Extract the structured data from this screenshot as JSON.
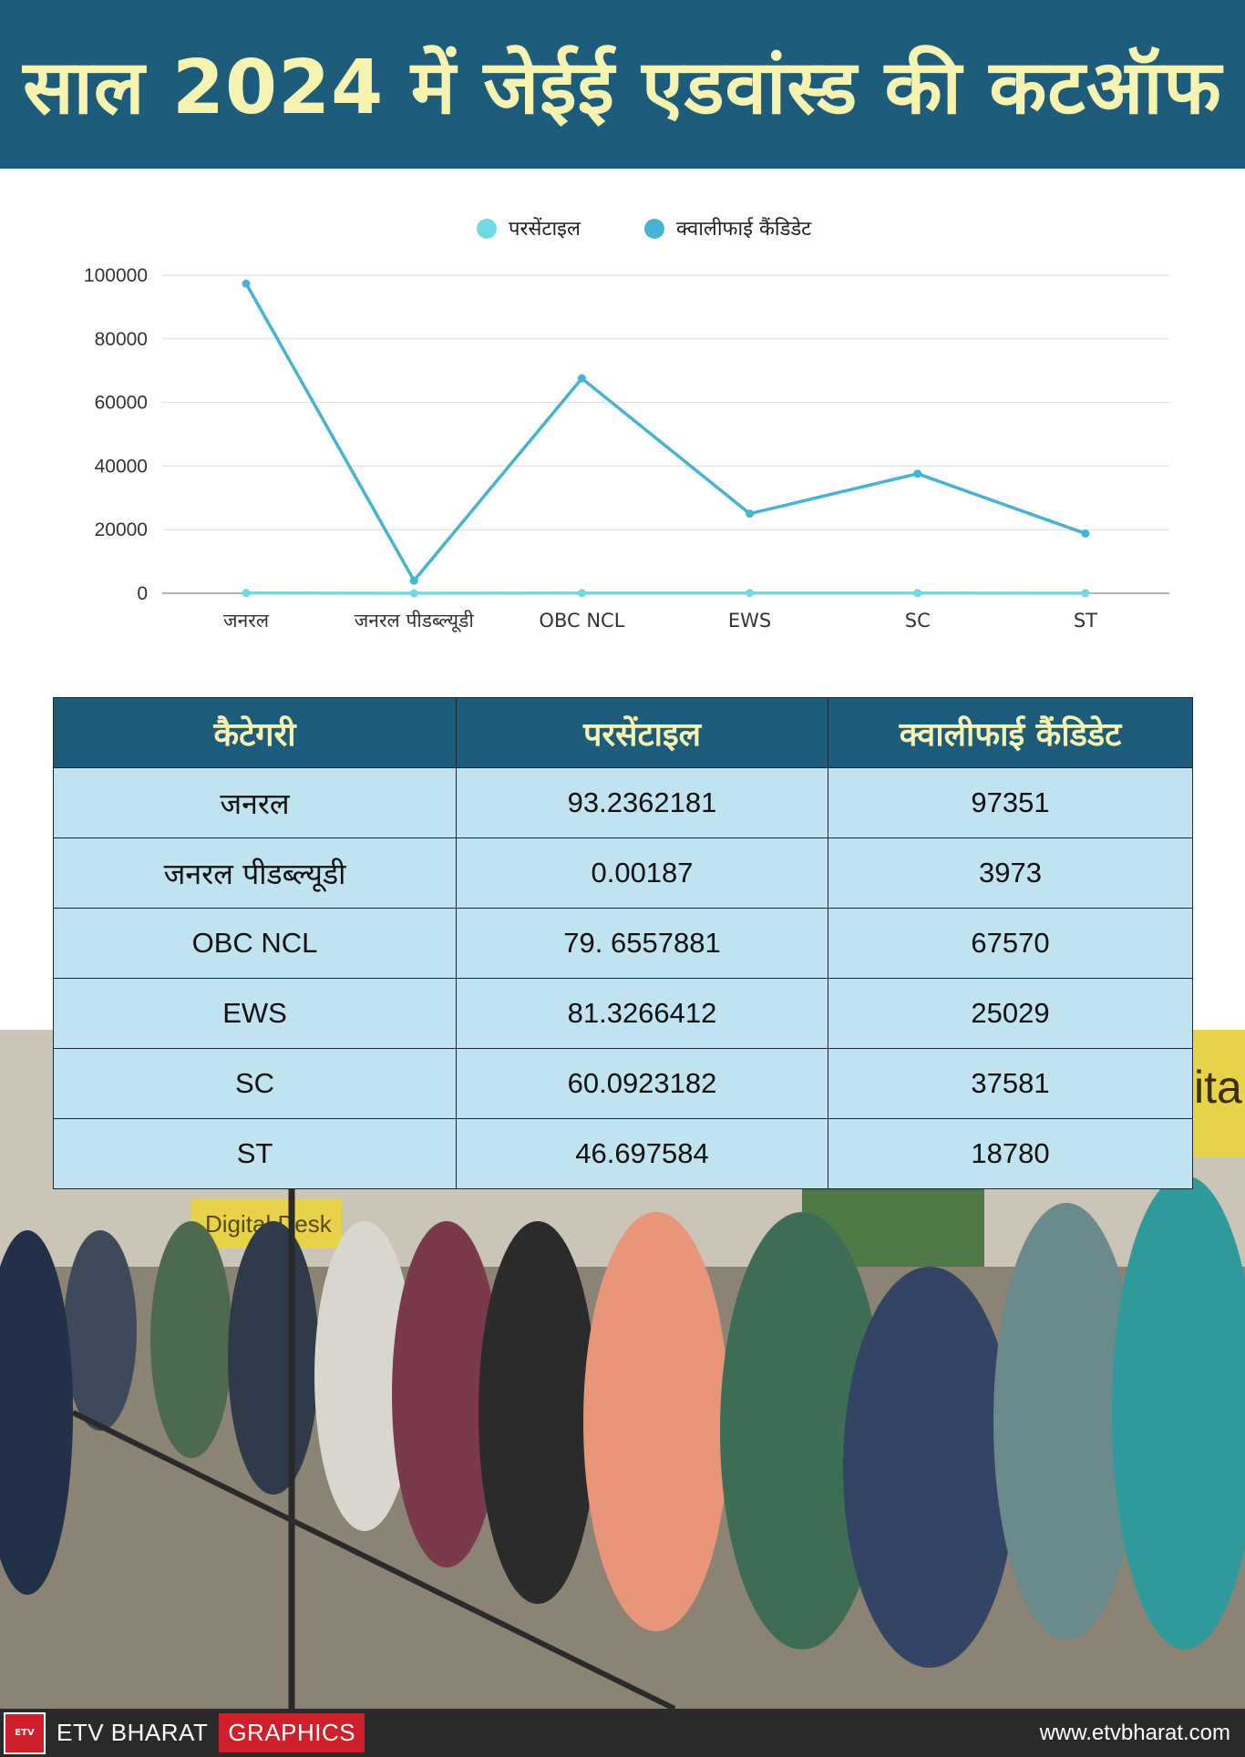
{
  "header": {
    "title": "साल 2024 में जेईई एडवांस्ड की कटऑफ"
  },
  "chart_data": {
    "type": "line",
    "legend_position": "top-center",
    "grid": true,
    "ylim": [
      0,
      100000
    ],
    "yticks": [
      "0",
      "20000",
      "40000",
      "60000",
      "80000",
      "100000"
    ],
    "ytick_values": [
      0,
      20000,
      40000,
      60000,
      80000,
      100000
    ],
    "categories": [
      "जनरल",
      "जनरल पीडब्ल्यूडी",
      "OBC NCL",
      "EWS",
      "SC",
      "ST"
    ],
    "series": [
      {
        "name": "परसेंटाइल",
        "color": "#6fd9e6",
        "values": [
          93.2362181,
          0.00187,
          79.6557881,
          81.3266412,
          60.0923182,
          46.697584
        ]
      },
      {
        "name": "क्वालीफाई कैंडिडेट",
        "color": "#47b3d2",
        "values": [
          97351,
          3973,
          67570,
          25029,
          37581,
          18780
        ]
      }
    ]
  },
  "table": {
    "headers": [
      "कैटेगरी",
      "परसेंटाइल",
      "क्वालीफाई कैंडिडेट"
    ],
    "rows": [
      [
        "जनरल",
        "93.2362181",
        "97351"
      ],
      [
        "जनरल पीडब्ल्यूडी",
        "0.00187",
        "3973"
      ],
      [
        "OBC NCL",
        "79. 6557881",
        "67570"
      ],
      [
        "EWS",
        "81.3266412",
        "25029"
      ],
      [
        "SC",
        "60.0923182",
        "37581"
      ],
      [
        "ST",
        "46.697584",
        "18780"
      ]
    ]
  },
  "photo": {
    "sign_text": "Digital Desk",
    "right_sign_text": "ita"
  },
  "footer": {
    "logo_text": "ETV",
    "brand": "ETV BHARAT",
    "graphics_label": "GRAPHICS",
    "url": "www.etvbharat.com"
  },
  "colors": {
    "header_bg": "#1d5c7a",
    "header_text": "#f6f3b0",
    "table_body": "#bfe3f0",
    "footer_accent": "#cf1f2a"
  }
}
